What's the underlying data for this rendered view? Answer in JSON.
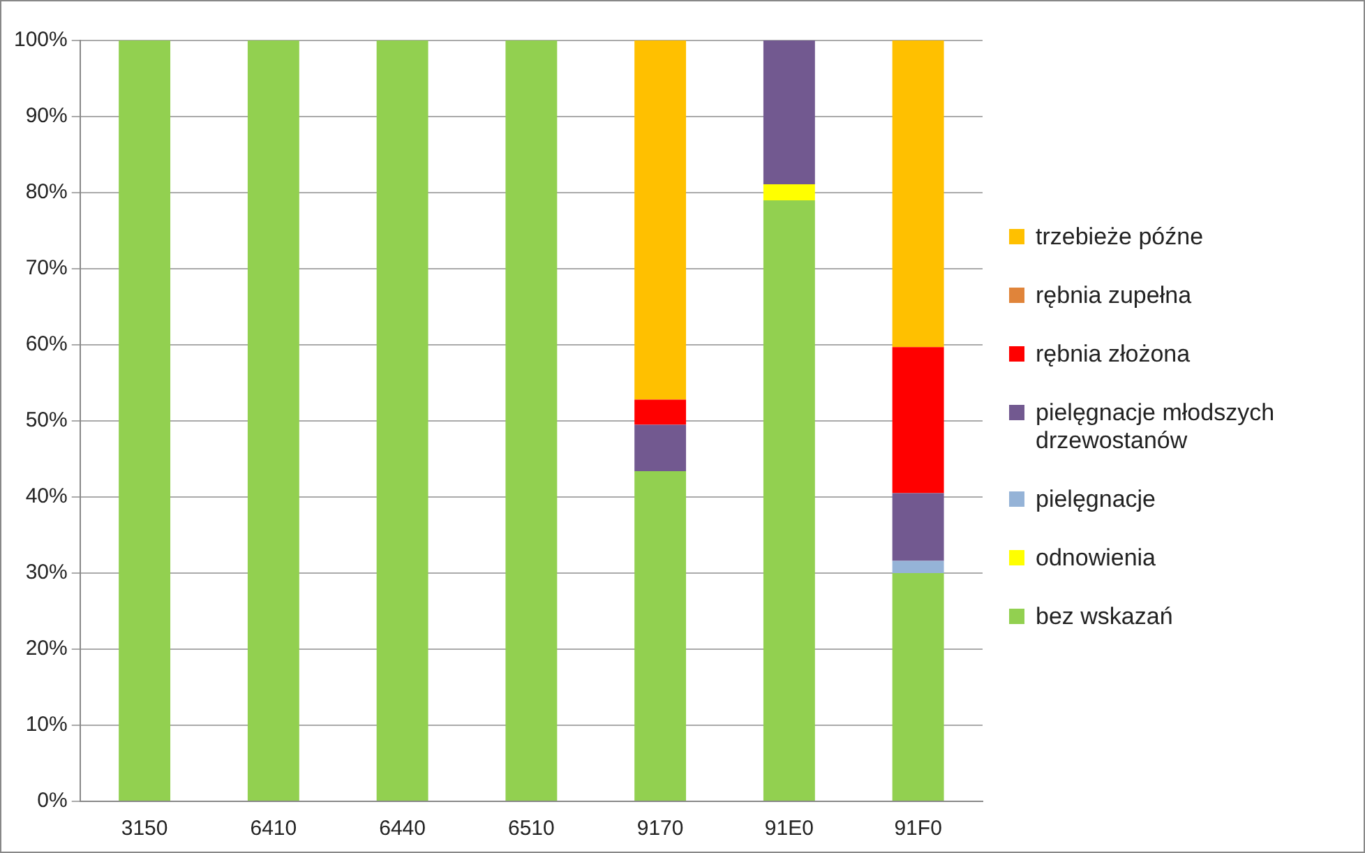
{
  "chart_data": {
    "type": "bar",
    "stacked": true,
    "categories": [
      "3150",
      "6410",
      "6440",
      "6510",
      "9170",
      "91E0",
      "91F0"
    ],
    "series": [
      {
        "name": "bez wskazań",
        "color": "#92d050",
        "values": [
          100,
          100,
          100,
          100,
          43.4,
          79,
          30
        ]
      },
      {
        "name": "odnowienia",
        "color": "#ffff00",
        "values": [
          0,
          0,
          0,
          0,
          0,
          2.1,
          0
        ]
      },
      {
        "name": "pielęgnacje",
        "color": "#95b3d7",
        "values": [
          0,
          0,
          0,
          0,
          0,
          0,
          1.6
        ]
      },
      {
        "name": "pielęgnacje młodszych drzewostanów",
        "color": "#725990",
        "values": [
          0,
          0,
          0,
          0,
          6.1,
          18.9,
          8.9
        ]
      },
      {
        "name": "rębnia złożona",
        "color": "#ff0000",
        "values": [
          0,
          0,
          0,
          0,
          3.3,
          0,
          19.2
        ]
      },
      {
        "name": "rębnia zupełna",
        "color": "#e0843a",
        "values": [
          0,
          0,
          0,
          0,
          0,
          0,
          0
        ]
      },
      {
        "name": "trzebieże późne",
        "color": "#ffc000",
        "values": [
          0,
          0,
          0,
          0,
          47.2,
          0,
          40.3
        ]
      }
    ],
    "ylim": [
      0,
      100
    ],
    "yticks": [
      {
        "value": 0,
        "label": "0%"
      },
      {
        "value": 10,
        "label": "10%"
      },
      {
        "value": 20,
        "label": "20%"
      },
      {
        "value": 30,
        "label": "30%"
      },
      {
        "value": 40,
        "label": "40%"
      },
      {
        "value": 50,
        "label": "50%"
      },
      {
        "value": 60,
        "label": "60%"
      },
      {
        "value": 70,
        "label": "70%"
      },
      {
        "value": 80,
        "label": "80%"
      },
      {
        "value": 90,
        "label": "90%"
      },
      {
        "value": 100,
        "label": "100%"
      }
    ],
    "grid": "y",
    "legend": "right"
  }
}
